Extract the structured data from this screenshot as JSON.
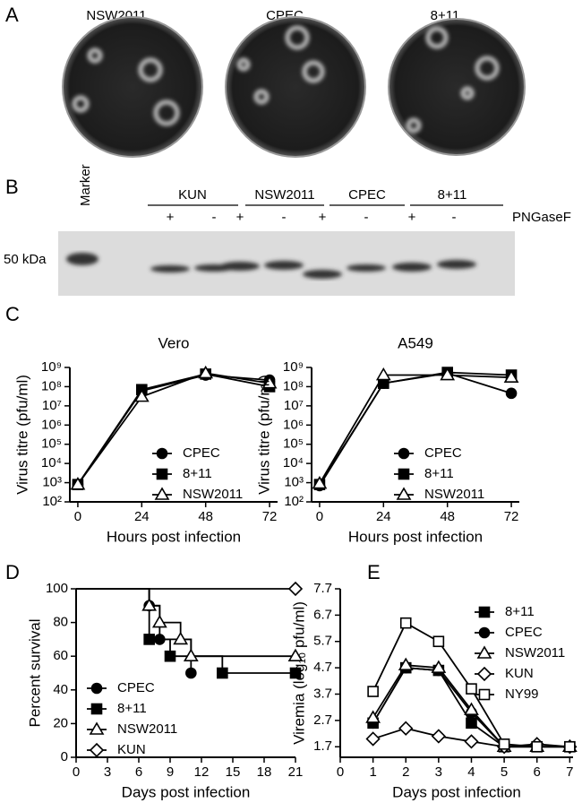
{
  "panel_labels": [
    "A",
    "B",
    "C",
    "D",
    "E"
  ],
  "plates": [
    "NSW2011",
    "CPEC",
    "8+11"
  ],
  "gel": {
    "marker_label": "Marker",
    "size_label": "50 kDa",
    "groups": [
      "KUN",
      "NSW2011",
      "CPEC",
      "8+11"
    ],
    "treatments": [
      "+",
      "-",
      "+",
      "-",
      "+",
      "-",
      "+",
      "-"
    ],
    "enzyme": "PNGaseF"
  },
  "chart_data": [
    {
      "type": "line",
      "title": "Vero",
      "xlabel": "Hours post infection",
      "ylabel": "Virus titre (pfu/ml)",
      "log_y": true,
      "x": [
        0,
        24,
        48,
        72
      ],
      "xlim": [
        -3,
        75
      ],
      "xticks": [
        0,
        24,
        48,
        72
      ],
      "ylim": [
        100,
        1000000000
      ],
      "yticks": [
        {
          "value": 100,
          "label": "10²"
        },
        {
          "value": 1000,
          "label": "10³"
        },
        {
          "value": 10000,
          "label": "10⁴"
        },
        {
          "value": 100000,
          "label": "10⁵"
        },
        {
          "value": 1000000,
          "label": "10⁶"
        },
        {
          "value": 10000000,
          "label": "10⁷"
        },
        {
          "value": 100000000,
          "label": "10⁸"
        },
        {
          "value": 1000000000,
          "label": "10⁹"
        }
      ],
      "legend": "lower right",
      "series": [
        {
          "name": "CPEC",
          "color": "#000000",
          "marker": "filled-circle",
          "values": [
            800,
            60000000,
            400000000,
            220000000
          ]
        },
        {
          "name": "8+11",
          "color": "#000000",
          "marker": "filled-square",
          "values": [
            800,
            70000000,
            450000000,
            100000000
          ]
        },
        {
          "name": "NSW2011",
          "color": "#000000",
          "marker": "open-triangle",
          "values": [
            800,
            30000000,
            500000000,
            150000000
          ]
        }
      ]
    },
    {
      "type": "line",
      "title": "A549",
      "xlabel": "Hours post infection",
      "ylabel": "Virus titre (pfu/ml)",
      "log_y": true,
      "x": [
        0,
        24,
        48,
        72
      ],
      "xlim": [
        -3,
        75
      ],
      "xticks": [
        0,
        24,
        48,
        72
      ],
      "ylim": [
        100,
        1000000000
      ],
      "yticks": [
        {
          "value": 100,
          "label": "10²"
        },
        {
          "value": 1000,
          "label": "10³"
        },
        {
          "value": 10000,
          "label": "10⁴"
        },
        {
          "value": 100000,
          "label": "10⁵"
        },
        {
          "value": 1000000,
          "label": "10⁶"
        },
        {
          "value": 10000000,
          "label": "10⁷"
        },
        {
          "value": 100000000,
          "label": "10⁸"
        },
        {
          "value": 1000000000,
          "label": "10⁹"
        }
      ],
      "legend": "lower right",
      "series": [
        {
          "name": "CPEC",
          "color": "#000000",
          "marker": "filled-circle",
          "values": [
            700,
            150000000,
            500000000,
            45000000
          ]
        },
        {
          "name": "8+11",
          "color": "#000000",
          "marker": "filled-square",
          "values": [
            800,
            150000000,
            550000000,
            400000000
          ]
        },
        {
          "name": "NSW2011",
          "color": "#000000",
          "marker": "open-triangle",
          "values": [
            900,
            400000000,
            400000000,
            300000000
          ]
        }
      ]
    },
    {
      "type": "step",
      "xlabel": "Days post infection",
      "ylabel": "Percent survival",
      "xlim": [
        0,
        21
      ],
      "xticks": [
        0,
        3,
        6,
        9,
        12,
        15,
        18,
        21
      ],
      "ylim": [
        0,
        100
      ],
      "yticks": [
        0,
        20,
        40,
        60,
        80,
        100
      ],
      "legend": "lower left",
      "series": [
        {
          "name": "CPEC",
          "color": "#000000",
          "marker": "filled-circle",
          "x": [
            0,
            7,
            8,
            11
          ],
          "values": [
            100,
            90,
            70,
            50
          ]
        },
        {
          "name": "8+11",
          "color": "#000000",
          "marker": "filled-square",
          "x": [
            0,
            7,
            9,
            14,
            21
          ],
          "values": [
            100,
            70,
            60,
            50,
            50
          ]
        },
        {
          "name": "NSW2011",
          "color": "#000000",
          "marker": "open-triangle",
          "x": [
            0,
            7,
            8,
            10,
            11,
            21
          ],
          "values": [
            100,
            90,
            80,
            70,
            60,
            60
          ]
        },
        {
          "name": "KUN",
          "color": "#000000",
          "marker": "open-diamond",
          "x": [
            0,
            21
          ],
          "values": [
            100,
            100
          ]
        }
      ]
    },
    {
      "type": "line",
      "xlabel": "Days post infection",
      "ylabel": "Viremia (log₁₀ pfu/ml)",
      "x": [
        1,
        2,
        3,
        4,
        5,
        6,
        7
      ],
      "xlim": [
        0,
        7.1
      ],
      "xticks": [
        0,
        1,
        2,
        3,
        4,
        5,
        6,
        7
      ],
      "ylim": [
        1.3,
        7.7
      ],
      "yticks": [
        1.7,
        2.7,
        3.7,
        4.7,
        5.7,
        6.7,
        7.7
      ],
      "legend": "upper right",
      "series": [
        {
          "name": "8+11",
          "color": "#000000",
          "marker": "filled-square",
          "values": [
            2.6,
            4.7,
            4.6,
            2.6,
            1.7,
            1.7,
            1.7
          ]
        },
        {
          "name": "CPEC",
          "color": "#000000",
          "marker": "filled-circle",
          "values": [
            2.6,
            4.7,
            4.6,
            3.0,
            1.7,
            1.7,
            1.7
          ]
        },
        {
          "name": "NSW2011",
          "color": "#000000",
          "marker": "open-triangle",
          "values": [
            2.8,
            4.8,
            4.7,
            3.1,
            1.7,
            1.7,
            1.7
          ]
        },
        {
          "name": "KUN",
          "color": "#000000",
          "marker": "open-diamond",
          "values": [
            2.0,
            2.4,
            2.1,
            1.9,
            1.7,
            1.8,
            1.7
          ]
        },
        {
          "name": "NY99",
          "color": "#000000",
          "marker": "open-square",
          "values": [
            3.8,
            6.4,
            5.7,
            3.9,
            1.8,
            1.7,
            1.7
          ]
        }
      ]
    }
  ]
}
